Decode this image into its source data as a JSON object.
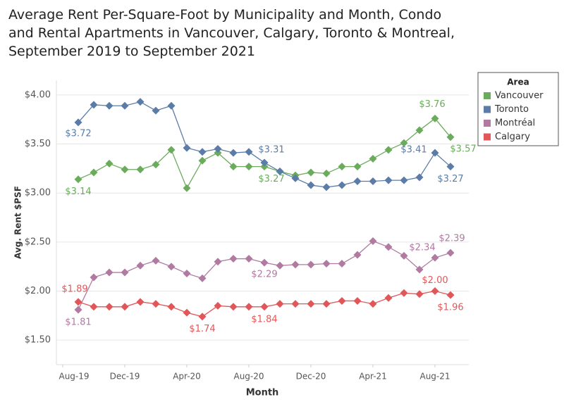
{
  "chart_data": {
    "type": "line",
    "title": "Average Rent Per-Square-Foot by Municipality and Month, Condo and Rental Apartments in Vancouver, Calgary, Toronto & Montreal, September 2019 to September 2021",
    "x_label": "Month",
    "y_label": "Avg. Rent $PSF",
    "legend_title": "Area",
    "legend": "right",
    "grid": true,
    "x": [
      "2019-09",
      "2019-10",
      "2019-11",
      "2019-12",
      "2020-01",
      "2020-02",
      "2020-03",
      "2020-04",
      "2020-05",
      "2020-06",
      "2020-07",
      "2020-08",
      "2020-09",
      "2020-10",
      "2020-11",
      "2020-12",
      "2021-01",
      "2021-02",
      "2021-03",
      "2021-04",
      "2021-05",
      "2021-06",
      "2021-07",
      "2021-08",
      "2021-09"
    ],
    "xlim": [
      "2019-07",
      "2021-10"
    ],
    "xticks": [
      {
        "value": "2019-08",
        "label": "Aug-19"
      },
      {
        "value": "2019-12",
        "label": "Dec-19"
      },
      {
        "value": "2020-04",
        "label": "Apr-20"
      },
      {
        "value": "2020-08",
        "label": "Aug-20"
      },
      {
        "value": "2020-12",
        "label": "Dec-20"
      },
      {
        "value": "2021-04",
        "label": "Apr-21"
      },
      {
        "value": "2021-08",
        "label": "Aug-21"
      }
    ],
    "ylim": [
      1.25,
      4.15
    ],
    "yticks": [
      {
        "value": 1.5,
        "label": "$1.50"
      },
      {
        "value": 2.0,
        "label": "$2.00"
      },
      {
        "value": 2.5,
        "label": "$2.50"
      },
      {
        "value": 3.0,
        "label": "$3.00"
      },
      {
        "value": 3.5,
        "label": "$3.50"
      },
      {
        "value": 4.0,
        "label": "$4.00"
      }
    ],
    "series": [
      {
        "name": "Vancouver",
        "color": "#6aab5c",
        "values": [
          3.14,
          3.21,
          3.3,
          3.24,
          3.24,
          3.29,
          3.44,
          3.05,
          3.33,
          3.41,
          3.27,
          3.27,
          3.27,
          3.22,
          3.18,
          3.21,
          3.2,
          3.27,
          3.27,
          3.35,
          3.44,
          3.51,
          3.64,
          3.76,
          3.57
        ],
        "value_labels": [
          "$3.14",
          null,
          null,
          null,
          null,
          null,
          null,
          null,
          null,
          null,
          null,
          null,
          "$3.27",
          null,
          null,
          null,
          null,
          null,
          null,
          null,
          null,
          null,
          null,
          "$3.76",
          "$3.57"
        ]
      },
      {
        "name": "Toronto",
        "color": "#5b7ca8",
        "values": [
          3.72,
          3.9,
          3.89,
          3.89,
          3.93,
          3.84,
          3.89,
          3.46,
          3.42,
          3.45,
          3.41,
          3.42,
          3.31,
          3.22,
          3.15,
          3.08,
          3.06,
          3.08,
          3.12,
          3.12,
          3.13,
          3.13,
          3.16,
          3.41,
          3.27
        ],
        "value_labels": [
          "$3.72",
          null,
          null,
          null,
          null,
          null,
          null,
          null,
          null,
          null,
          null,
          null,
          "$3.31",
          null,
          null,
          null,
          null,
          null,
          null,
          null,
          null,
          null,
          null,
          "$3.41",
          "$3.27"
        ]
      },
      {
        "name": "Montréal",
        "color": "#b07aa1",
        "values": [
          1.81,
          2.14,
          2.19,
          2.19,
          2.26,
          2.31,
          2.25,
          2.18,
          2.13,
          2.3,
          2.33,
          2.33,
          2.29,
          2.26,
          2.27,
          2.27,
          2.28,
          2.28,
          2.37,
          2.51,
          2.45,
          2.36,
          2.22,
          2.34,
          2.39
        ],
        "value_labels": [
          "$1.81",
          null,
          null,
          null,
          null,
          null,
          null,
          null,
          null,
          null,
          null,
          null,
          "$2.29",
          null,
          null,
          null,
          null,
          null,
          null,
          null,
          null,
          null,
          null,
          "$2.34",
          "$2.39"
        ]
      },
      {
        "name": "Calgary",
        "color": "#e15759",
        "values": [
          1.89,
          1.84,
          1.84,
          1.84,
          1.89,
          1.87,
          1.84,
          1.78,
          1.74,
          1.85,
          1.84,
          1.84,
          1.84,
          1.87,
          1.87,
          1.87,
          1.87,
          1.9,
          1.9,
          1.87,
          1.93,
          1.98,
          1.97,
          2.0,
          1.96
        ],
        "value_labels": [
          "$1.89",
          null,
          null,
          null,
          null,
          null,
          null,
          null,
          "$1.74",
          null,
          null,
          null,
          "$1.84",
          null,
          null,
          null,
          null,
          null,
          null,
          null,
          null,
          null,
          null,
          "$2.00",
          "$1.96"
        ]
      }
    ]
  }
}
